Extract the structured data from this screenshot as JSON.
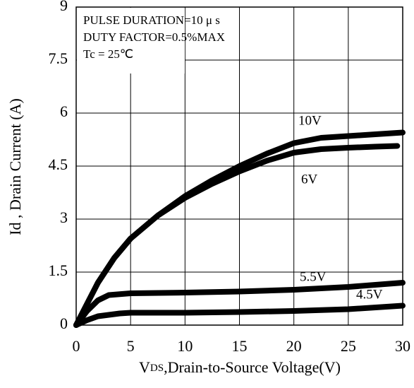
{
  "chart_data": {
    "type": "line",
    "x_label": [
      "V",
      "DS",
      ",Drain-to-Source Voltage(V)"
    ],
    "y_label": "Id , Drain Current (A)",
    "annotations": [
      "PULSE DURATION=10 μ s",
      "DUTY FACTOR=0.5%MAX",
      "Tc = 25℃"
    ],
    "xlim": [
      0,
      30
    ],
    "ylim": [
      0,
      9
    ],
    "xticks": [
      0,
      5,
      10,
      15,
      20,
      25,
      30
    ],
    "yticks": [
      0,
      1.5,
      3,
      4.5,
      6,
      7.5,
      9
    ],
    "grid": true,
    "series": [
      {
        "name": "10V",
        "color": "#000000",
        "x": [
          0,
          1,
          2,
          3.5,
          5,
          7.5,
          10,
          12.5,
          15,
          17.5,
          20,
          22.5,
          25,
          27.5,
          30
        ],
        "values": [
          0,
          0.6,
          1.2,
          1.9,
          2.45,
          3.1,
          3.65,
          4.1,
          4.5,
          4.85,
          5.15,
          5.3,
          5.35,
          5.4,
          5.45
        ]
      },
      {
        "name": "6V",
        "color": "#000000",
        "x": [
          0,
          1,
          2,
          3.5,
          5,
          7.5,
          10,
          12.5,
          15,
          17.5,
          20,
          22.5,
          25,
          27.5,
          29.5
        ],
        "values": [
          0,
          0.6,
          1.2,
          1.9,
          2.45,
          3.1,
          3.6,
          4.0,
          4.35,
          4.65,
          4.88,
          4.98,
          5.02,
          5.05,
          5.07
        ]
      },
      {
        "name": "5.5V",
        "color": "#000000",
        "x": [
          0,
          1,
          2,
          3,
          5,
          10,
          15,
          20,
          25,
          30
        ],
        "values": [
          0,
          0.4,
          0.7,
          0.85,
          0.9,
          0.92,
          0.95,
          1.0,
          1.08,
          1.2
        ]
      },
      {
        "name": "4.5V",
        "color": "#000000",
        "x": [
          0,
          1,
          2,
          4,
          5,
          10,
          15,
          20,
          25,
          30
        ],
        "values": [
          0,
          0.14,
          0.25,
          0.33,
          0.35,
          0.35,
          0.37,
          0.4,
          0.45,
          0.55
        ]
      }
    ]
  }
}
